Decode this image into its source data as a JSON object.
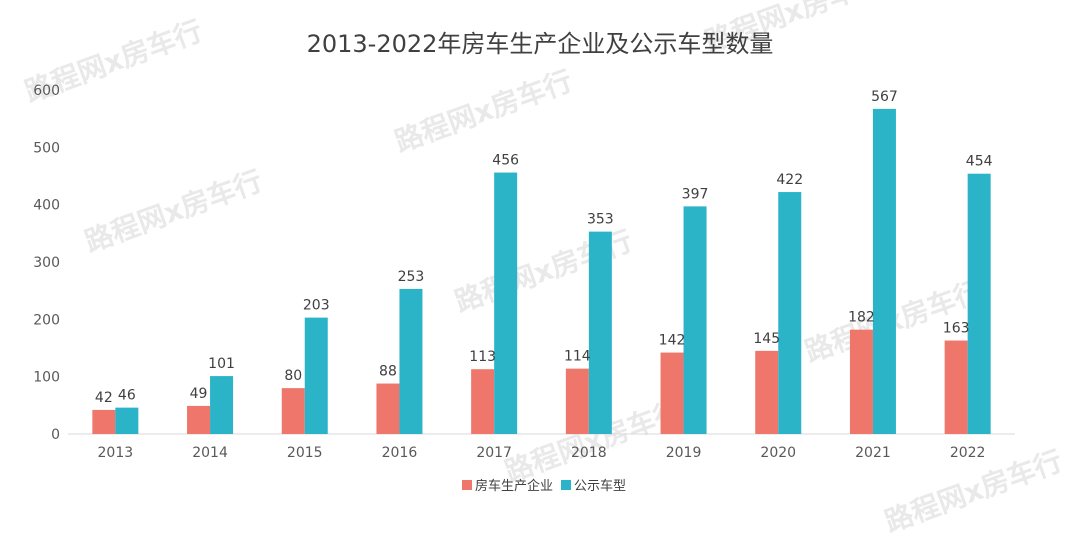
{
  "watermark_text": "路程网x房车行",
  "chart_data": {
    "type": "bar",
    "title": "2013-2022年房车生产企业及公示车型数量",
    "categories": [
      "2013",
      "2014",
      "2015",
      "2016",
      "2017",
      "2018",
      "2019",
      "2020",
      "2021",
      "2022"
    ],
    "series": [
      {
        "name": "房车生产企业",
        "color": "#ee766a",
        "values": [
          42,
          49,
          80,
          88,
          113,
          114,
          142,
          145,
          182,
          163
        ]
      },
      {
        "name": "公示车型",
        "color": "#2bb4c8",
        "values": [
          46,
          101,
          203,
          253,
          456,
          353,
          397,
          422,
          567,
          454
        ]
      }
    ],
    "ylim": [
      0,
      600
    ],
    "yticks": [
      0,
      100,
      200,
      300,
      400,
      500,
      600
    ],
    "xlabel": "",
    "ylabel": "",
    "grid": false,
    "legend": "bottom-center",
    "data_labels": true
  }
}
